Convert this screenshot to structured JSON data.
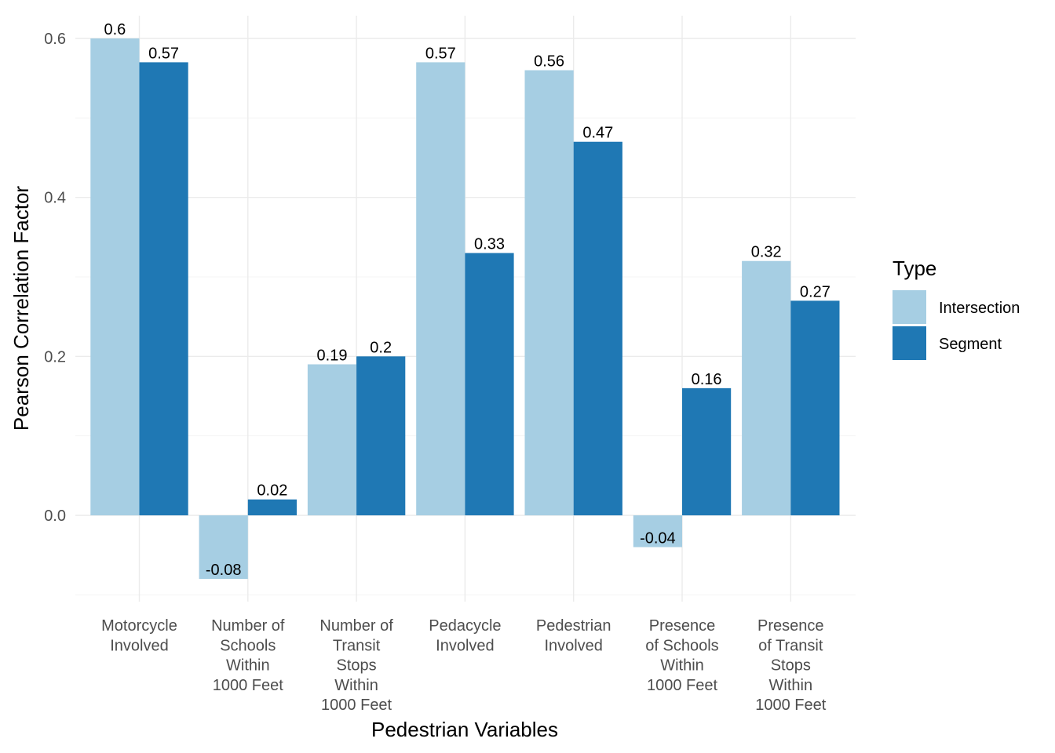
{
  "chart_data": {
    "type": "bar",
    "xlabel": "Pedestrian Variables",
    "ylabel": "Pearson Correlation Factor",
    "categories": [
      [
        "Motorcycle",
        "Involved"
      ],
      [
        "Number of",
        "Schools",
        "Within",
        "1000 Feet"
      ],
      [
        "Number of",
        "Transit",
        "Stops",
        "Within",
        "1000 Feet"
      ],
      [
        "Pedacycle",
        "Involved"
      ],
      [
        "Pedestrian",
        "Involved"
      ],
      [
        "Presence",
        "of Schools",
        "Within",
        "1000 Feet"
      ],
      [
        "Presence",
        "of Transit",
        "Stops",
        "Within",
        "1000 Feet"
      ]
    ],
    "series": [
      {
        "name": "Intersection",
        "color": "#a6cee3",
        "values": [
          0.6,
          -0.08,
          0.19,
          0.57,
          0.56,
          -0.04,
          0.32
        ],
        "labels": [
          "0.6",
          "-0.08",
          "0.19",
          "0.57",
          "0.56",
          "-0.04",
          "0.32"
        ]
      },
      {
        "name": "Segment",
        "color": "#1f78b4",
        "values": [
          0.57,
          0.02,
          0.2,
          0.33,
          0.47,
          0.16,
          0.27
        ],
        "labels": [
          "0.57",
          "0.02",
          "0.2",
          "0.33",
          "0.47",
          "0.16",
          "0.27"
        ]
      }
    ],
    "ylim": [
      -0.1,
      0.6
    ],
    "yticks": [
      0.0,
      0.2,
      0.4,
      0.6
    ],
    "ytick_labels": [
      "0.0",
      "0.2",
      "0.4",
      "0.6"
    ],
    "grid": true,
    "legend": {
      "title": "Type",
      "position": "right"
    }
  }
}
